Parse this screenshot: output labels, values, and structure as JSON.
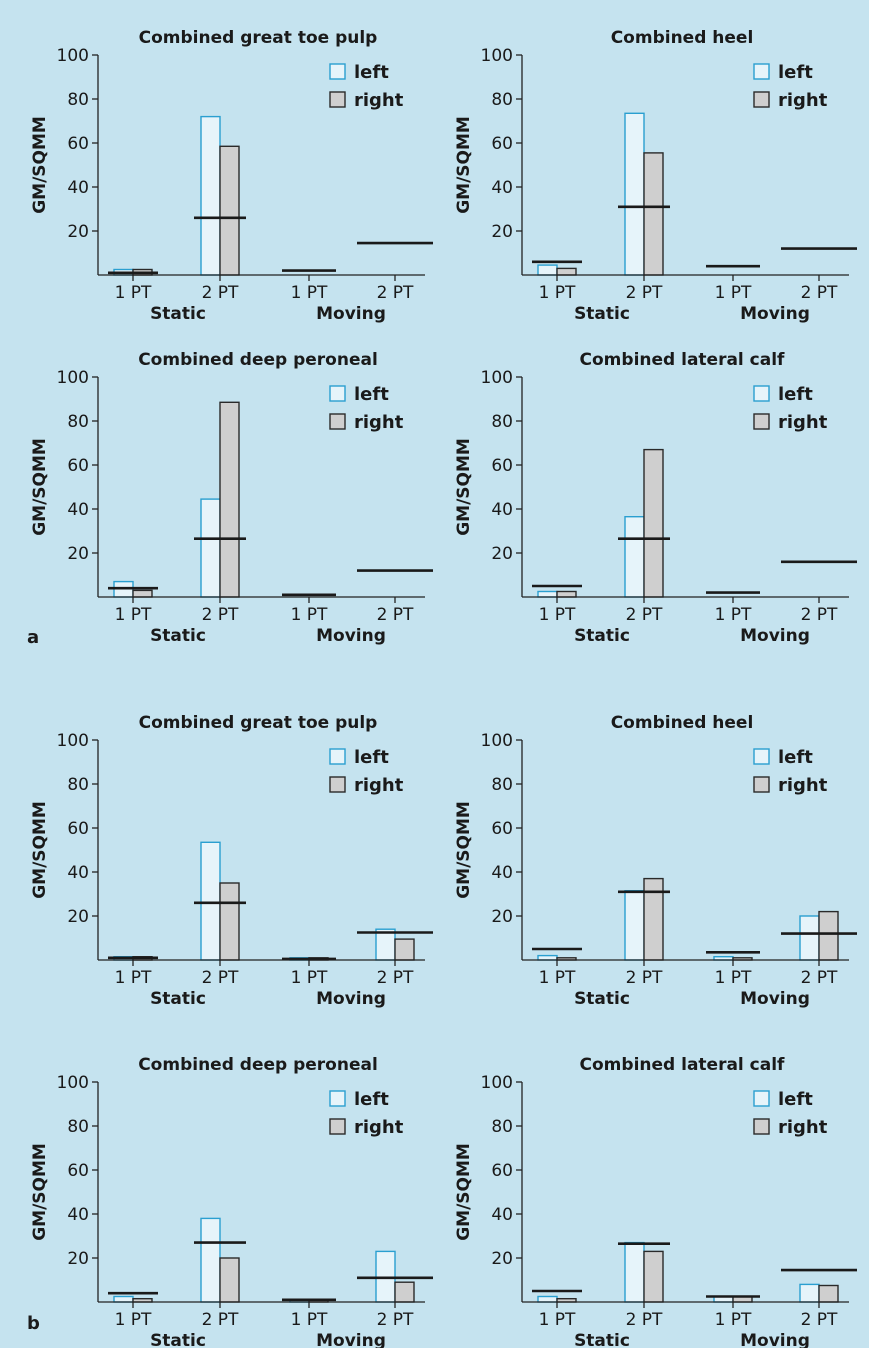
{
  "colors": {
    "background": "#c5e3ef",
    "left_fill": "#e6f4fa",
    "left_stroke": "#2a9fd0",
    "right_fill": "#cfcfcf",
    "right_stroke": "#2a2a2a",
    "reference_line": "#1a1a1a"
  },
  "figure": {
    "panel_labels": [
      "a",
      "b"
    ]
  },
  "chart_data": [
    {
      "type": "bar",
      "panel": "a",
      "title": "Combined great toe pulp",
      "ylabel": "GM/SQMM",
      "ylim": [
        0,
        100
      ],
      "yticks": [
        20,
        40,
        60,
        80,
        100
      ],
      "categories": [
        "1 PT",
        "2 PT",
        "1 PT",
        "2 PT"
      ],
      "groups": [
        {
          "label": "Static",
          "categories": [
            0,
            1
          ]
        },
        {
          "label": "Moving",
          "categories": [
            2,
            3
          ]
        }
      ],
      "legend_position": "top-right",
      "series": [
        {
          "name": "left",
          "values": [
            2.5,
            72,
            null,
            null
          ]
        },
        {
          "name": "right",
          "values": [
            2.5,
            58.5,
            null,
            null
          ]
        }
      ],
      "reference_lines": [
        1,
        26,
        2,
        14.5
      ]
    },
    {
      "type": "bar",
      "panel": "a",
      "title": "Combined heel",
      "ylabel": "GM/SQMM",
      "ylim": [
        0,
        100
      ],
      "yticks": [
        20,
        40,
        60,
        80,
        100
      ],
      "categories": [
        "1 PT",
        "2 PT",
        "1 PT",
        "2 PT"
      ],
      "groups": [
        {
          "label": "Static",
          "categories": [
            0,
            1
          ]
        },
        {
          "label": "Moving",
          "categories": [
            2,
            3
          ]
        }
      ],
      "legend_position": "top-right",
      "series": [
        {
          "name": "left",
          "values": [
            4.5,
            73.5,
            null,
            null
          ]
        },
        {
          "name": "right",
          "values": [
            3,
            55.5,
            null,
            null
          ]
        }
      ],
      "reference_lines": [
        6,
        31,
        4,
        12
      ]
    },
    {
      "type": "bar",
      "panel": "a",
      "title": "Combined deep peroneal",
      "ylabel": "GM/SQMM",
      "ylim": [
        0,
        100
      ],
      "yticks": [
        20,
        40,
        60,
        80,
        100
      ],
      "categories": [
        "1 PT",
        "2 PT",
        "1 PT",
        "2 PT"
      ],
      "groups": [
        {
          "label": "Static",
          "categories": [
            0,
            1
          ]
        },
        {
          "label": "Moving",
          "categories": [
            2,
            3
          ]
        }
      ],
      "legend_position": "top-right",
      "series": [
        {
          "name": "left",
          "values": [
            7,
            44.5,
            null,
            null
          ]
        },
        {
          "name": "right",
          "values": [
            3,
            88.5,
            null,
            null
          ]
        }
      ],
      "reference_lines": [
        4,
        26.5,
        1,
        12
      ]
    },
    {
      "type": "bar",
      "panel": "a",
      "title": "Combined lateral calf",
      "ylabel": "GM/SQMM",
      "ylim": [
        0,
        100
      ],
      "yticks": [
        20,
        40,
        60,
        80,
        100
      ],
      "categories": [
        "1 PT",
        "2 PT",
        "1 PT",
        "2 PT"
      ],
      "groups": [
        {
          "label": "Static",
          "categories": [
            0,
            1
          ]
        },
        {
          "label": "Moving",
          "categories": [
            2,
            3
          ]
        }
      ],
      "legend_position": "top-right",
      "series": [
        {
          "name": "left",
          "values": [
            2.5,
            36.5,
            null,
            null
          ]
        },
        {
          "name": "right",
          "values": [
            2.5,
            67,
            null,
            null
          ]
        }
      ],
      "reference_lines": [
        5,
        26.5,
        2,
        16
      ]
    },
    {
      "type": "bar",
      "panel": "b",
      "title": "Combined great toe pulp",
      "ylabel": "GM/SQMM",
      "ylim": [
        0,
        100
      ],
      "yticks": [
        20,
        40,
        60,
        80,
        100
      ],
      "categories": [
        "1 PT",
        "2 PT",
        "1 PT",
        "2 PT"
      ],
      "groups": [
        {
          "label": "Static",
          "categories": [
            0,
            1
          ]
        },
        {
          "label": "Moving",
          "categories": [
            2,
            3
          ]
        }
      ],
      "legend_position": "top-right",
      "series": [
        {
          "name": "left",
          "values": [
            1.5,
            53.5,
            1,
            14
          ]
        },
        {
          "name": "right",
          "values": [
            1.5,
            35,
            1,
            9.5
          ]
        }
      ],
      "reference_lines": [
        1,
        26,
        0.5,
        12.5
      ]
    },
    {
      "type": "bar",
      "panel": "b",
      "title": "Combined heel",
      "ylabel": "GM/SQMM",
      "ylim": [
        0,
        100
      ],
      "yticks": [
        20,
        40,
        60,
        80,
        100
      ],
      "categories": [
        "1 PT",
        "2 PT",
        "1 PT",
        "2 PT"
      ],
      "groups": [
        {
          "label": "Static",
          "categories": [
            0,
            1
          ]
        },
        {
          "label": "Moving",
          "categories": [
            2,
            3
          ]
        }
      ],
      "legend_position": "top-right",
      "series": [
        {
          "name": "left",
          "values": [
            2,
            31.5,
            1.5,
            20
          ]
        },
        {
          "name": "right",
          "values": [
            1,
            37,
            1,
            22
          ]
        }
      ],
      "reference_lines": [
        5,
        31,
        3.5,
        12
      ]
    },
    {
      "type": "bar",
      "panel": "b",
      "title": "Combined deep peroneal",
      "ylabel": "GM/SQMM",
      "ylim": [
        0,
        100
      ],
      "yticks": [
        20,
        40,
        60,
        80,
        100
      ],
      "categories": [
        "1 PT",
        "2 PT",
        "1 PT",
        "2 PT"
      ],
      "groups": [
        {
          "label": "Static",
          "categories": [
            0,
            1
          ]
        },
        {
          "label": "Moving",
          "categories": [
            2,
            3
          ]
        }
      ],
      "legend_position": "top-right",
      "series": [
        {
          "name": "left",
          "values": [
            2.5,
            38,
            1,
            23
          ]
        },
        {
          "name": "right",
          "values": [
            1.5,
            20,
            1,
            9
          ]
        }
      ],
      "reference_lines": [
        4,
        27,
        1,
        11
      ]
    },
    {
      "type": "bar",
      "panel": "b",
      "title": "Combined lateral calf",
      "ylabel": "GM/SQMM",
      "ylim": [
        0,
        100
      ],
      "yticks": [
        20,
        40,
        60,
        80,
        100
      ],
      "categories": [
        "1 PT",
        "2 PT",
        "1 PT",
        "2 PT"
      ],
      "groups": [
        {
          "label": "Static",
          "categories": [
            0,
            1
          ]
        },
        {
          "label": "Moving",
          "categories": [
            2,
            3
          ]
        }
      ],
      "legend_position": "top-right",
      "series": [
        {
          "name": "left",
          "values": [
            2.5,
            27,
            2.5,
            8
          ]
        },
        {
          "name": "right",
          "values": [
            1.5,
            23,
            2.5,
            7.5
          ]
        }
      ],
      "reference_lines": [
        5,
        26.5,
        2.5,
        14.5
      ]
    }
  ]
}
